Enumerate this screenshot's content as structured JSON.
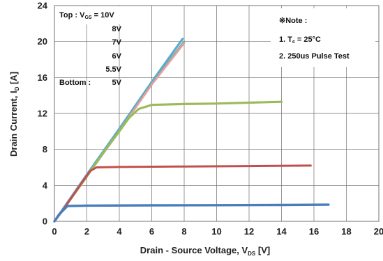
{
  "chart_data": {
    "type": "line",
    "title": "",
    "xlabel": "Drain - Source Voltage, V",
    "xlabel_sub": "DS",
    "xlabel_unit": " [V]",
    "ylabel": "Drain Current, I",
    "ylabel_sub": "D",
    "ylabel_unit": " [A]",
    "xlim": [
      0,
      20
    ],
    "ylim": [
      0,
      24
    ],
    "x_ticks": [
      "0",
      "2",
      "4",
      "6",
      "8",
      "10",
      "12",
      "14",
      "16",
      "18",
      "20"
    ],
    "y_ticks": [
      "0",
      "4",
      "8",
      "12",
      "16",
      "20",
      "24"
    ],
    "grid": true,
    "legend": {
      "placement": "top-left",
      "top_prefix": "Top : V",
      "top_sub": "GS",
      "top_value": " = 10V",
      "labels": [
        "8V",
        "7V",
        "6V",
        "5.5V"
      ],
      "bottom_prefix": "Bottom :",
      "bottom_value": "5V"
    },
    "notes": {
      "header": "※Note :",
      "item1_prefix": "1. T",
      "item1_sub": "c",
      "item1_value": " = 25°C",
      "item2": "2. 250us Pulse Test"
    },
    "series": [
      {
        "color": "#5aa9d6",
        "width": 3.2,
        "points": [
          [
            0,
            0
          ],
          [
            0.5,
            1.3
          ],
          [
            2,
            5.2
          ],
          [
            4,
            10.3
          ],
          [
            6,
            15.5
          ],
          [
            7.9,
            20.3
          ]
        ]
      },
      {
        "color": "#7bb08d",
        "width": 3.0,
        "points": [
          [
            0,
            0
          ],
          [
            0.5,
            1.2
          ],
          [
            2,
            5.0
          ],
          [
            4,
            10.1
          ],
          [
            6,
            15.3
          ],
          [
            8,
            20.0
          ]
        ]
      },
      {
        "color": "#e8a0a4",
        "width": 2.6,
        "points": [
          [
            0,
            0
          ],
          [
            0.5,
            1.2
          ],
          [
            2,
            5.0
          ],
          [
            4,
            10.0
          ],
          [
            6,
            15.2
          ],
          [
            8,
            19.8
          ]
        ]
      },
      {
        "color": "#9bbb59",
        "width": 3.2,
        "points": [
          [
            0,
            0
          ],
          [
            0.5,
            1.2
          ],
          [
            2,
            5.0
          ],
          [
            3,
            7.6
          ],
          [
            4,
            10.0
          ],
          [
            4.6,
            11.5
          ],
          [
            5.2,
            12.5
          ],
          [
            6,
            12.95
          ],
          [
            8,
            13.05
          ],
          [
            10,
            13.1
          ],
          [
            12,
            13.2
          ],
          [
            14,
            13.3
          ]
        ]
      },
      {
        "color": "#c0504d",
        "width": 3.0,
        "points": [
          [
            0,
            0
          ],
          [
            0.5,
            1.2
          ],
          [
            1.5,
            3.8
          ],
          [
            2.2,
            5.6
          ],
          [
            2.6,
            6.0
          ],
          [
            4,
            6.05
          ],
          [
            8,
            6.1
          ],
          [
            12,
            6.15
          ],
          [
            15.8,
            6.2
          ]
        ]
      },
      {
        "color": "#4a7ebb",
        "width": 3.4,
        "points": [
          [
            0,
            0
          ],
          [
            0.3,
            0.8
          ],
          [
            0.8,
            1.7
          ],
          [
            2,
            1.75
          ],
          [
            6,
            1.78
          ],
          [
            10,
            1.8
          ],
          [
            14,
            1.82
          ],
          [
            16.9,
            1.85
          ]
        ]
      }
    ]
  }
}
